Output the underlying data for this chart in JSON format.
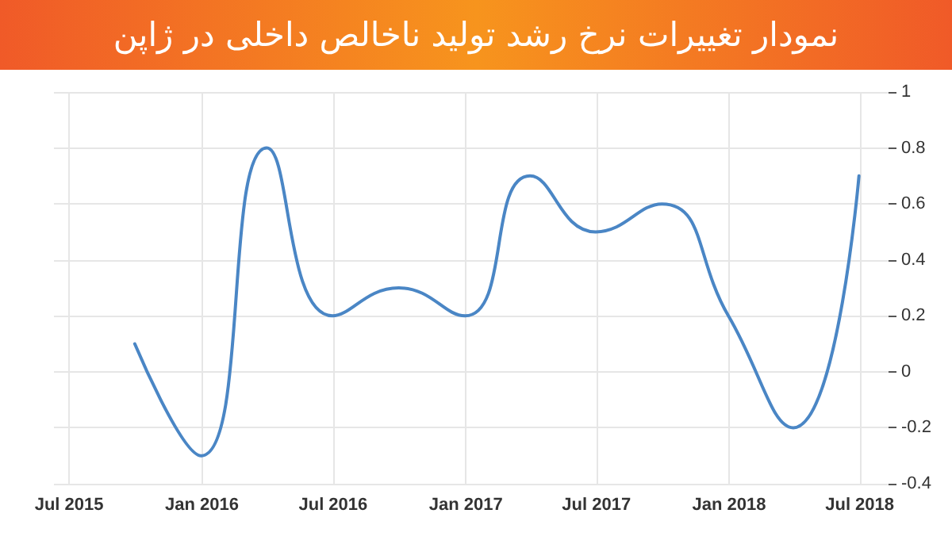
{
  "chart_data": {
    "type": "line",
    "title": "نمودار تغییرات نرخ رشد تولید ناخالص داخلی در ژاپن",
    "x": [
      "2015-09-30",
      "2015-12-31",
      "2016-03-31",
      "2016-06-30",
      "2016-09-30",
      "2016-12-31",
      "2017-03-31",
      "2017-06-30",
      "2017-09-30",
      "2017-12-31",
      "2018-03-31",
      "2018-06-30"
    ],
    "series": [
      {
        "color": "#4a86c5",
        "values": [
          0.1,
          -0.3,
          0.8,
          0.2,
          0.3,
          0.2,
          0.7,
          0.5,
          0.6,
          0.2,
          -0.2,
          0.7
        ]
      }
    ],
    "xlim": [
      "2015-06-10",
      "2018-08-10"
    ],
    "xticks": [
      {
        "value": "2015-07",
        "label": "Jul 2015"
      },
      {
        "value": "2016-01",
        "label": "Jan 2016"
      },
      {
        "value": "2016-07",
        "label": "Jul 2016"
      },
      {
        "value": "2017-01",
        "label": "Jan 2017"
      },
      {
        "value": "2017-07",
        "label": "Jul 2017"
      },
      {
        "value": "2018-01",
        "label": "Jan 2018"
      },
      {
        "value": "2018-07",
        "label": "Jul 2018"
      }
    ],
    "ylim": [
      -0.4,
      1
    ],
    "yticks": [
      -0.4,
      -0.2,
      0,
      0.2,
      0.4,
      0.6,
      0.8,
      1
    ],
    "grid": true,
    "marker": "none",
    "line_style": "solid"
  }
}
